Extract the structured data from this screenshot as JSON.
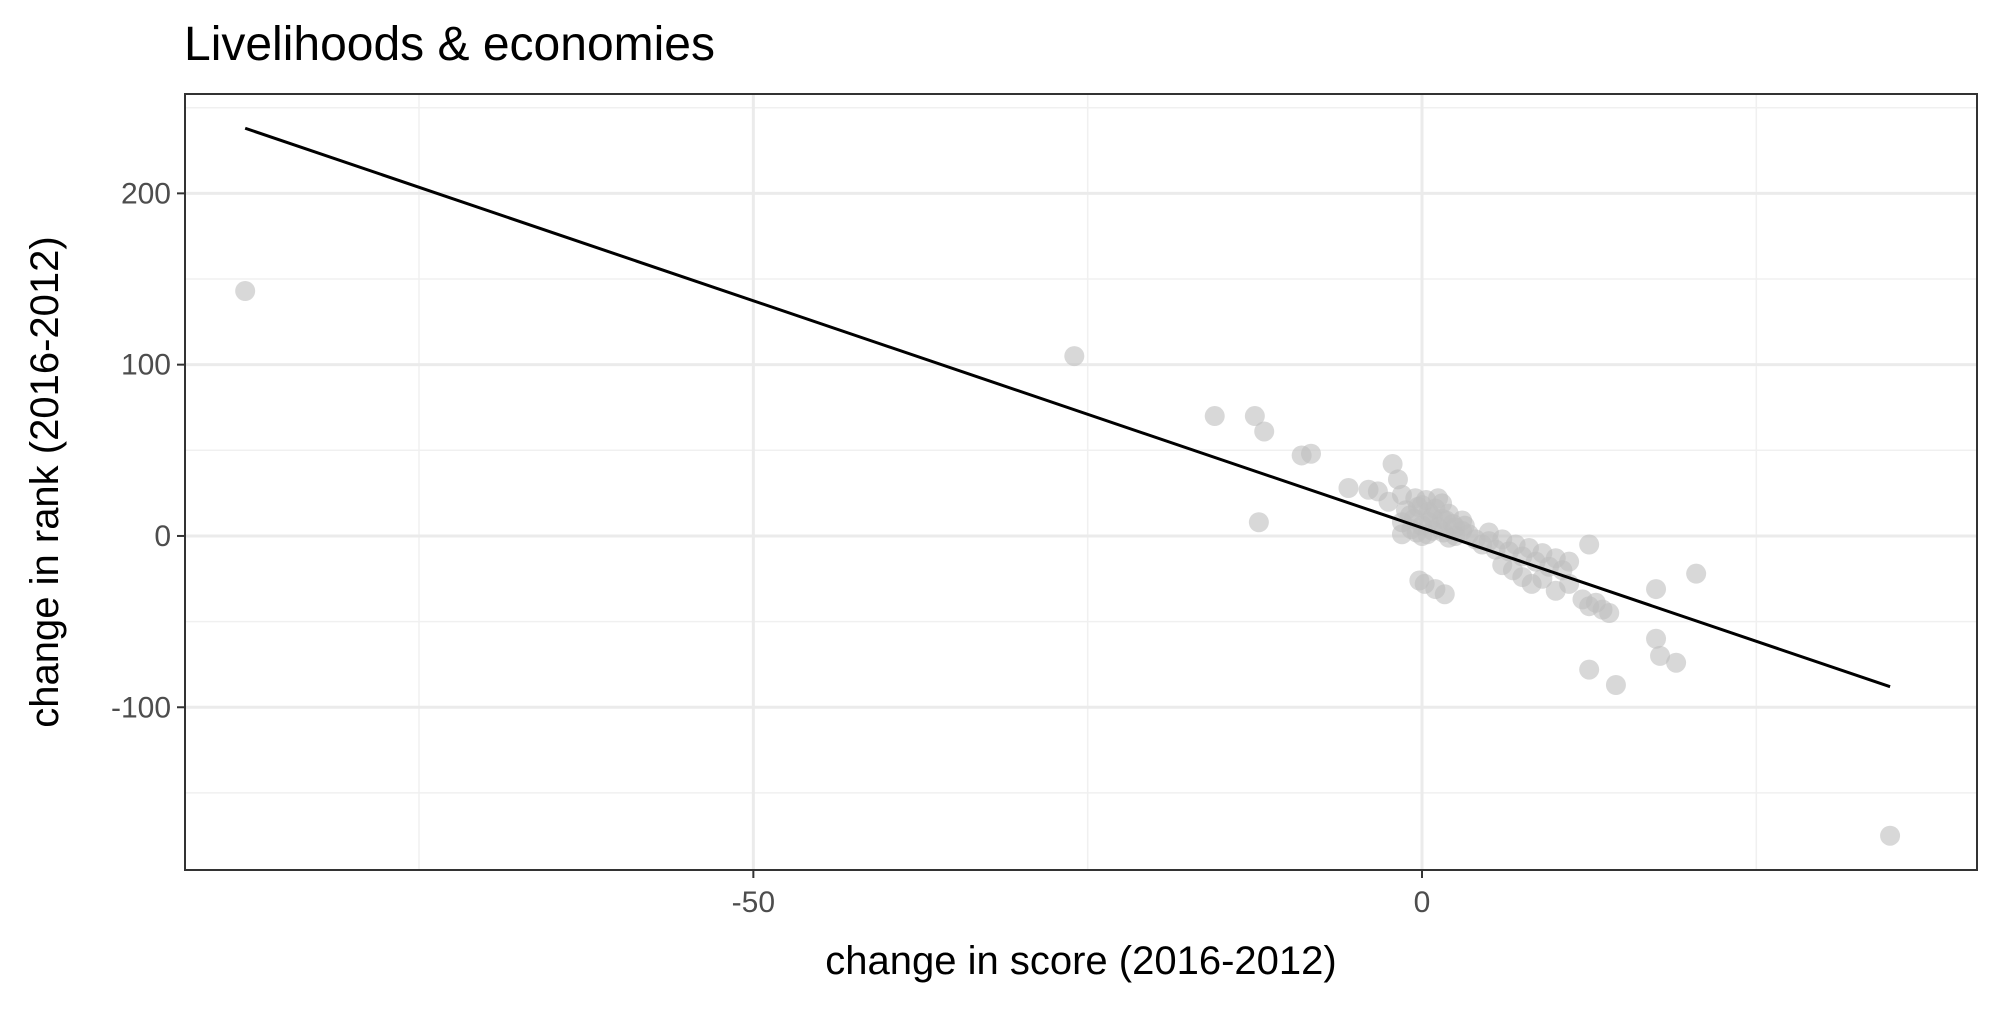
{
  "chart_data": {
    "type": "scatter",
    "title": "Livelihoods & economies",
    "xlabel": "change in score (2016-2012)",
    "ylabel": "change in rank (2016-2012)",
    "xlim": [
      -92.5,
      41.5
    ],
    "ylim": [
      -195,
      258
    ],
    "x_ticks": [
      -50,
      0
    ],
    "x_minor_ticks": [
      -75,
      -25,
      25
    ],
    "y_ticks": [
      -100,
      0,
      100,
      200
    ],
    "y_minor_ticks": [
      -150,
      -50,
      50,
      150,
      250
    ],
    "grid": true,
    "point_color": "#bebebe",
    "trend_line": {
      "x": [
        -88,
        35
      ],
      "y": [
        238,
        -88
      ]
    },
    "points": [
      [
        -88,
        143
      ],
      [
        -26,
        105
      ],
      [
        -15.5,
        70
      ],
      [
        -12.5,
        70
      ],
      [
        -11.8,
        61
      ],
      [
        -12.2,
        8
      ],
      [
        -9,
        47
      ],
      [
        -8.3,
        48
      ],
      [
        -5.5,
        28
      ],
      [
        -4,
        27
      ],
      [
        -3.3,
        26
      ],
      [
        -2.2,
        42
      ],
      [
        -1.8,
        33
      ],
      [
        -2.5,
        20
      ],
      [
        -1.5,
        24
      ],
      [
        -1.2,
        15
      ],
      [
        -0.9,
        12
      ],
      [
        -0.5,
        22
      ],
      [
        -0.3,
        17
      ],
      [
        0,
        18
      ],
      [
        0.3,
        21
      ],
      [
        0.5,
        14
      ],
      [
        0.8,
        11
      ],
      [
        1,
        16
      ],
      [
        1.2,
        22
      ],
      [
        1.5,
        19
      ],
      [
        1.8,
        9
      ],
      [
        2,
        13
      ],
      [
        2.3,
        7
      ],
      [
        2.5,
        5
      ],
      [
        -1.5,
        1
      ],
      [
        -0.8,
        4
      ],
      [
        -0.4,
        2
      ],
      [
        0,
        0
      ],
      [
        0.4,
        1
      ],
      [
        0.8,
        3
      ],
      [
        1.2,
        5
      ],
      [
        1.6,
        2
      ],
      [
        2,
        -1
      ],
      [
        2.5,
        0
      ],
      [
        3,
        3
      ],
      [
        3.5,
        1
      ],
      [
        3.2,
        6
      ],
      [
        4,
        -2
      ],
      [
        4.5,
        -5
      ],
      [
        5,
        -3
      ],
      [
        5.5,
        -8
      ],
      [
        6,
        -2
      ],
      [
        6.5,
        -9
      ],
      [
        7,
        -5
      ],
      [
        7.5,
        -12
      ],
      [
        8,
        -7
      ],
      [
        8.5,
        -15
      ],
      [
        9,
        -10
      ],
      [
        9.5,
        -18
      ],
      [
        10,
        -13
      ],
      [
        10.5,
        -20
      ],
      [
        11,
        -15
      ],
      [
        6,
        -17
      ],
      [
        6.8,
        -20
      ],
      [
        7.5,
        -24
      ],
      [
        8.2,
        -28
      ],
      [
        9,
        -25
      ],
      [
        10,
        -32
      ],
      [
        11,
        -28
      ],
      [
        12,
        -37
      ],
      [
        12.5,
        -41
      ],
      [
        13,
        -39
      ],
      [
        13.5,
        -43
      ],
      [
        14,
        -45
      ],
      [
        -0.2,
        -26
      ],
      [
        0.2,
        -28
      ],
      [
        1,
        -31
      ],
      [
        1.7,
        -34
      ],
      [
        12.5,
        -5
      ],
      [
        17.5,
        -31
      ],
      [
        20.5,
        -22
      ],
      [
        12.5,
        -78
      ],
      [
        14.5,
        -87
      ],
      [
        17.5,
        -60
      ],
      [
        17.8,
        -70
      ],
      [
        19,
        -74
      ],
      [
        35,
        -175
      ],
      [
        -1.5,
        8
      ],
      [
        0.5,
        8
      ],
      [
        1.5,
        10
      ],
      [
        3,
        9
      ],
      [
        5,
        2
      ],
      [
        0,
        6
      ],
      [
        -0.6,
        10
      ]
    ]
  }
}
